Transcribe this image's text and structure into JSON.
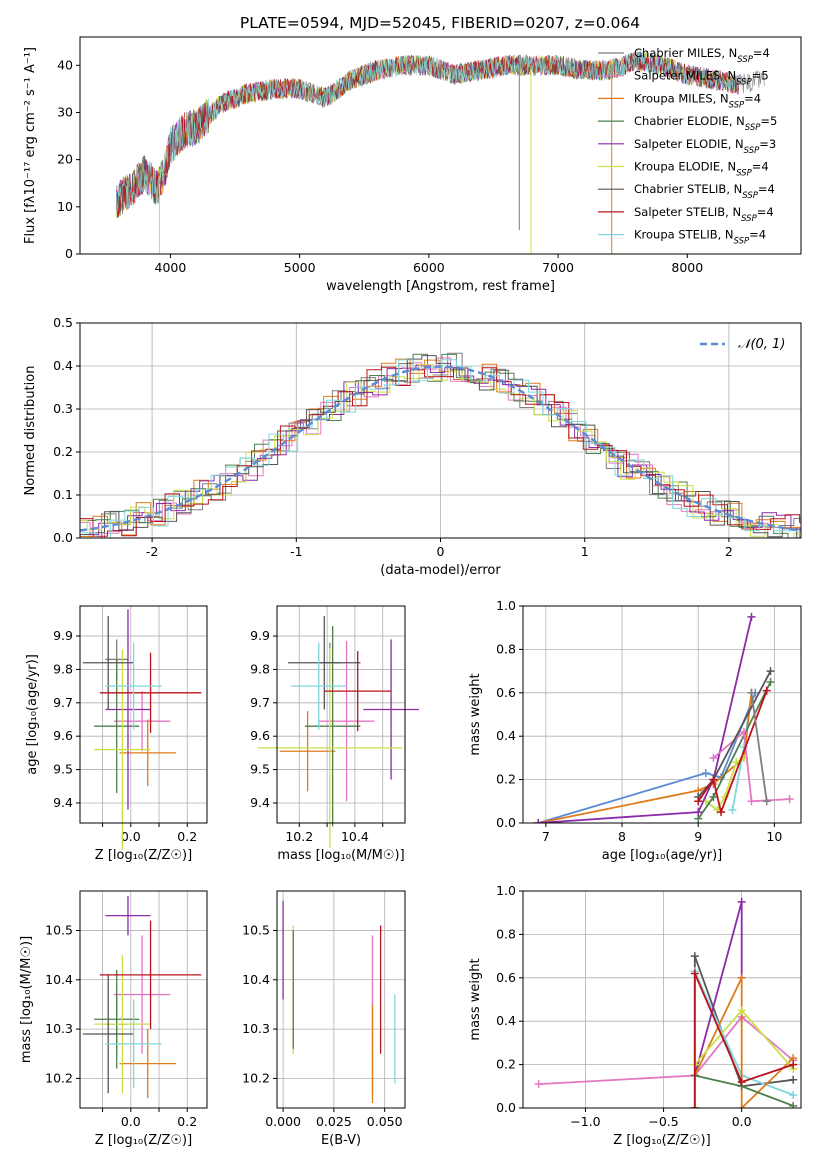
{
  "figure": {
    "title": "PLATE=0594, MJD=52045, FIBERID=0207, z=0.064"
  },
  "colors": {
    "Chabrier MILES": "#7f7f7f",
    "Salpeter MILES": "#e377c2",
    "Kroupa MILES": "#e07b1a",
    "Chabrier ELODIE": "#4f7f4f",
    "Salpeter ELODIE": "#8c2aa8",
    "Kroupa ELODIE": "#cce04a",
    "Chabrier STELIB": "#555555",
    "Salpeter STELIB": "#b8141c",
    "Kroupa STELIB": "#7fd6dc",
    "gaussian": "#5b8bd4",
    "blue_seg": "#5b8bd4"
  },
  "chart_data": [
    {
      "id": "spectrum",
      "type": "line",
      "xlabel": "wavelength [Angstrom, rest frame]",
      "ylabel": "Flux [f_λ10^-17 erg cm^-2 s^-1 A^-1]",
      "xlim": [
        3300,
        8880
      ],
      "ylim": [
        0,
        46
      ],
      "xticks": [
        4000,
        5000,
        6000,
        7000,
        8000
      ],
      "yticks": [
        0,
        10,
        20,
        30,
        40
      ],
      "grid": false,
      "legend_position": "right",
      "legend": [
        {
          "name": "Chabrier MILES",
          "nssp": "4"
        },
        {
          "name": "Salpeter MILES",
          "nssp": "5"
        },
        {
          "name": "Kroupa MILES",
          "nssp": "4"
        },
        {
          "name": "Chabrier ELODIE",
          "nssp": "5"
        },
        {
          "name": "Salpeter ELODIE",
          "nssp": "3"
        },
        {
          "name": "Kroupa ELODIE",
          "nssp": "4"
        },
        {
          "name": "Chabrier STELIB",
          "nssp": "4"
        },
        {
          "name": "Salpeter STELIB",
          "nssp": "4"
        },
        {
          "name": "Kroupa STELIB",
          "nssp": "4"
        }
      ],
      "continuum": {
        "x": [
          3580,
          3700,
          3800,
          3900,
          3950,
          4000,
          4100,
          4200,
          4400,
          4600,
          4800,
          5000,
          5200,
          5400,
          5600,
          5800,
          6000,
          6200,
          6400,
          6600,
          6800,
          7000,
          7200,
          7400,
          7600,
          7800,
          8000,
          8200,
          8400,
          8600
        ],
        "y": [
          11,
          14,
          17,
          14,
          17,
          23,
          26,
          27,
          32,
          34,
          35,
          35,
          33,
          37,
          39,
          40,
          40,
          38,
          39,
          40,
          40,
          40,
          39,
          39,
          41,
          40,
          38,
          37,
          36,
          37
        ]
      },
      "dropouts": [
        {
          "x": 3915,
          "y": 0,
          "series": "Kroupa ELODIE"
        },
        {
          "x": 6700,
          "y": 5,
          "series": "Chabrier MILES"
        },
        {
          "x": 6790,
          "y": 0,
          "series": "Kroupa ELODIE"
        },
        {
          "x": 7415,
          "y": 0,
          "series": "Kroupa MILES"
        }
      ]
    },
    {
      "id": "residuals",
      "type": "histogram",
      "xlabel": "(data-model)/error",
      "ylabel": "Normed distribution",
      "xlim": [
        -2.5,
        2.5
      ],
      "ylim": [
        0,
        0.5
      ],
      "xticks": [
        -2,
        -1,
        0,
        1,
        2
      ],
      "yticks": [
        0.0,
        0.1,
        0.2,
        0.3,
        0.4,
        0.5
      ],
      "grid": true,
      "legend_position": "top-right",
      "legend": [
        "𝒩(0, 1)"
      ],
      "gaussian": {
        "mean": 0,
        "sigma": 1
      }
    },
    {
      "id": "age_vs_Z",
      "type": "errorbar",
      "xlabel": "Z [log10(Z/Z☉)]",
      "ylabel": "age [log10(age/yr)]",
      "xlim": [
        -0.18,
        0.27
      ],
      "ylim": [
        9.34,
        9.99
      ],
      "xticks": [
        -0.1,
        0.0,
        0.1,
        0.2
      ],
      "xticklabels": [
        "",
        "0.0",
        "",
        "0.2"
      ],
      "yticks": [
        9.4,
        9.5,
        9.6,
        9.7,
        9.8,
        9.9
      ],
      "grid": true,
      "points": [
        {
          "series": "Chabrier MILES",
          "x": -0.05,
          "xerr": 0.04,
          "y": 9.83,
          "yerr": 0.06
        },
        {
          "series": "Salpeter MILES",
          "x": 0.04,
          "xerr": 0.1,
          "y": 9.645,
          "yerr": 0.09
        },
        {
          "series": "Kroupa MILES",
          "x": 0.06,
          "xerr": 0.1,
          "y": 9.55,
          "yerr": 0.1
        },
        {
          "series": "Chabrier ELODIE",
          "x": -0.05,
          "xerr": 0.08,
          "y": 9.63,
          "yerr": 0.2
        },
        {
          "series": "Salpeter ELODIE",
          "x": -0.01,
          "xerr": 0.08,
          "y": 9.68,
          "yerr": 0.3
        },
        {
          "series": "Kroupa ELODIE",
          "x": -0.03,
          "xerr": 0.1,
          "y": 9.56,
          "yerr": 0.3
        },
        {
          "series": "Chabrier STELIB",
          "x": -0.08,
          "xerr": 0.09,
          "y": 9.82,
          "yerr": 0.14
        },
        {
          "series": "Salpeter STELIB",
          "x": 0.07,
          "xerr": 0.18,
          "y": 9.73,
          "yerr": 0.12
        },
        {
          "series": "Kroupa STELIB",
          "x": 0.01,
          "xerr": 0.1,
          "y": 9.75,
          "yerr": 0.13
        }
      ]
    },
    {
      "id": "age_vs_mass",
      "type": "errorbar",
      "xlabel": "mass [log10(M/M☉)]",
      "ylabel": "",
      "xlim": [
        10.12,
        10.58
      ],
      "ylim": [
        9.34,
        9.99
      ],
      "xticks": [
        10.2,
        10.3,
        10.4,
        10.5
      ],
      "xticklabels": [
        "10.2",
        "",
        "10.4",
        ""
      ],
      "yticks": [
        9.4,
        9.5,
        9.6,
        9.7,
        9.8,
        9.9
      ],
      "grid": true,
      "points": [
        {
          "series": "Chabrier MILES",
          "x": 10.31,
          "xerr": 0.04,
          "y": 9.82,
          "yerr": 0.06
        },
        {
          "series": "Salpeter MILES",
          "x": 10.37,
          "xerr": 0.1,
          "y": 9.645,
          "yerr": 0.24
        },
        {
          "series": "Kroupa MILES",
          "x": 10.23,
          "xerr": 0.1,
          "y": 9.555,
          "yerr": 0.12
        },
        {
          "series": "Chabrier ELODIE",
          "x": 10.32,
          "xerr": 0.1,
          "y": 9.63,
          "yerr": 0.3
        },
        {
          "series": "Salpeter ELODIE",
          "x": 10.53,
          "xerr": 0.1,
          "y": 9.68,
          "yerr": 0.21
        },
        {
          "series": "Kroupa ELODIE",
          "x": 10.31,
          "xerr": 0.26,
          "y": 9.565,
          "yerr": 0.3
        },
        {
          "series": "Chabrier STELIB",
          "x": 10.29,
          "xerr": 0.13,
          "y": 9.82,
          "yerr": 0.14
        },
        {
          "series": "Salpeter STELIB",
          "x": 10.41,
          "xerr": 0.12,
          "y": 9.735,
          "yerr": 0.12
        },
        {
          "series": "Kroupa STELIB",
          "x": 10.27,
          "xerr": 0.1,
          "y": 9.75,
          "yerr": 0.13
        }
      ]
    },
    {
      "id": "weight_vs_age",
      "type": "line",
      "xlabel": "age [log10(age/yr)]",
      "ylabel": "mass weight",
      "xlim": [
        6.7,
        10.35
      ],
      "ylim": [
        0,
        1.0
      ],
      "xticks": [
        7,
        8,
        9,
        10
      ],
      "yticks": [
        0.0,
        0.2,
        0.4,
        0.6,
        0.8,
        1.0
      ],
      "grid": true,
      "series": [
        {
          "name": "Kroupa STELIB",
          "x": [
            9.45,
            9.6,
            9.7
          ],
          "y": [
            0.06,
            0.35,
            0.6
          ]
        },
        {
          "name": "gaussian",
          "x": [
            6.9,
            9.1,
            9.3,
            9.75
          ],
          "y": [
            0.0,
            0.23,
            0.21,
            0.6
          ]
        },
        {
          "name": "Kroupa MILES",
          "x": [
            6.9,
            9.0,
            9.2,
            9.6,
            9.7
          ],
          "y": [
            0.0,
            0.15,
            0.18,
            0.3,
            0.6
          ]
        },
        {
          "name": "Kroupa ELODIE",
          "x": [
            9.1,
            9.25,
            9.35,
            9.5,
            9.6
          ],
          "y": [
            0.1,
            0.06,
            0.12,
            0.28,
            0.3
          ]
        },
        {
          "name": "Chabrier ELODIE",
          "x": [
            9.0,
            9.2,
            9.95
          ],
          "y": [
            0.02,
            0.12,
            0.65
          ]
        },
        {
          "name": "Salpeter ELODIE",
          "x": [
            6.9,
            9.0,
            9.2,
            9.7
          ],
          "y": [
            0.0,
            0.05,
            0.2,
            0.95
          ]
        },
        {
          "name": "Salpeter MILES",
          "x": [
            9.2,
            9.6,
            9.7,
            10.2
          ],
          "y": [
            0.3,
            0.42,
            0.1,
            0.11
          ]
        },
        {
          "name": "Chabrier STELIB",
          "x": [
            9.0,
            9.2,
            9.95
          ],
          "y": [
            0.12,
            0.2,
            0.7
          ]
        },
        {
          "name": "Salpeter STELIB",
          "x": [
            9.0,
            9.2,
            9.3,
            9.9
          ],
          "y": [
            0.1,
            0.2,
            0.05,
            0.61
          ]
        },
        {
          "name": "Chabrier MILES",
          "x": [
            9.7,
            9.9
          ],
          "y": [
            0.6,
            0.1
          ]
        }
      ]
    },
    {
      "id": "mass_vs_Z",
      "type": "errorbar",
      "xlabel": "Z [log10(Z/Z☉)]",
      "ylabel": "mass [log10(M/M☉)]",
      "xlim": [
        -0.18,
        0.27
      ],
      "ylim": [
        10.14,
        10.58
      ],
      "xticks": [
        -0.1,
        0.0,
        0.1,
        0.2
      ],
      "xticklabels": [
        "",
        "0.0",
        "",
        "0.2"
      ],
      "yticks": [
        10.2,
        10.3,
        10.4,
        10.5
      ],
      "grid": true,
      "points": [
        {
          "series": "Chabrier MILES",
          "x": -0.05,
          "xerr": 0.04,
          "y": 10.31,
          "yerr": 0.06
        },
        {
          "series": "Salpeter MILES",
          "x": 0.04,
          "xerr": 0.1,
          "y": 10.37,
          "yerr": 0.12
        },
        {
          "series": "Kroupa MILES",
          "x": 0.06,
          "xerr": 0.1,
          "y": 10.23,
          "yerr": 0.07
        },
        {
          "series": "Chabrier ELODIE",
          "x": -0.05,
          "xerr": 0.08,
          "y": 10.32,
          "yerr": 0.1
        },
        {
          "series": "Salpeter ELODIE",
          "x": -0.01,
          "xerr": 0.08,
          "y": 10.53,
          "yerr": 0.04
        },
        {
          "series": "Kroupa ELODIE",
          "x": -0.03,
          "xerr": 0.1,
          "y": 10.31,
          "yerr": 0.14
        },
        {
          "series": "Chabrier STELIB",
          "x": -0.08,
          "xerr": 0.09,
          "y": 10.29,
          "yerr": 0.12
        },
        {
          "series": "Salpeter STELIB",
          "x": 0.07,
          "xerr": 0.18,
          "y": 10.41,
          "yerr": 0.11
        },
        {
          "series": "Kroupa STELIB",
          "x": 0.01,
          "xerr": 0.1,
          "y": 10.27,
          "yerr": 0.09
        }
      ]
    },
    {
      "id": "mass_vs_EBV",
      "type": "errorbar",
      "xlabel": "E(B-V)",
      "ylabel": "",
      "xlim": [
        -0.003,
        0.06
      ],
      "ylim": [
        10.14,
        10.58
      ],
      "xticks": [
        0.0,
        0.025,
        0.05
      ],
      "xticklabels": [
        "0.000",
        "0.025",
        "0.050"
      ],
      "yticks": [
        10.2,
        10.3,
        10.4,
        10.5
      ],
      "grid": true,
      "points": [
        {
          "series": "Salpeter ELODIE",
          "x": 0.0,
          "y": 10.46,
          "yerr": 0.1
        },
        {
          "series": "Kroupa ELODIE",
          "x": 0.005,
          "y": 10.38,
          "yerr": 0.13
        },
        {
          "series": "Chabrier ELODIE",
          "x": 0.005,
          "y": 10.38,
          "yerr": 0.12
        },
        {
          "series": "Salpeter MILES",
          "x": 0.044,
          "y": 10.33,
          "yerr": 0.16
        },
        {
          "series": "Kroupa MILES",
          "x": 0.044,
          "y": 10.25,
          "yerr": 0.1
        },
        {
          "series": "Salpeter STELIB",
          "x": 0.048,
          "y": 10.38,
          "yerr": 0.13
        },
        {
          "series": "Kroupa STELIB",
          "x": 0.055,
          "y": 10.28,
          "yerr": 0.09
        }
      ]
    },
    {
      "id": "weight_vs_Z",
      "type": "line",
      "xlabel": "Z [log10(Z/Z☉)]",
      "ylabel": "mass weight",
      "xlim": [
        -1.4,
        0.38
      ],
      "ylim": [
        0,
        1.0
      ],
      "xticks": [
        -1.0,
        -0.5,
        0.0
      ],
      "yticks": [
        0.0,
        0.2,
        0.4,
        0.6,
        0.8,
        1.0
      ],
      "grid": true,
      "series": [
        {
          "name": "Salpeter MILES",
          "x": [
            -1.3,
            -0.3,
            0.0,
            0.33
          ],
          "y": [
            0.11,
            0.15,
            0.42,
            0.22
          ]
        },
        {
          "name": "Chabrier STELIB",
          "x": [
            -0.3,
            -0.3,
            0.0,
            0.33
          ],
          "y": [
            0.0,
            0.7,
            0.1,
            0.13
          ]
        },
        {
          "name": "Kroupa STELIB",
          "x": [
            -0.3,
            0.0,
            0.33
          ],
          "y": [
            0.63,
            0.15,
            0.06
          ]
        },
        {
          "name": "Salpeter ELODIE",
          "x": [
            -0.3,
            0.0,
            0.0
          ],
          "y": [
            0.15,
            0.95,
            0.6
          ]
        },
        {
          "name": "Kroupa MILES",
          "x": [
            -0.3,
            0.0,
            0.0,
            0.33
          ],
          "y": [
            0.15,
            0.6,
            0.0,
            0.23
          ]
        },
        {
          "name": "Kroupa ELODIE",
          "x": [
            -0.3,
            0.0,
            0.33
          ],
          "y": [
            0.2,
            0.45,
            0.18
          ]
        },
        {
          "name": "Chabrier ELODIE",
          "x": [
            -0.3,
            0.0,
            0.33
          ],
          "y": [
            0.15,
            0.1,
            0.01
          ]
        },
        {
          "name": "Salpeter STELIB",
          "x": [
            -0.3,
            -0.3,
            0.0,
            0.33
          ],
          "y": [
            0.0,
            0.62,
            0.12,
            0.2
          ]
        }
      ]
    }
  ]
}
